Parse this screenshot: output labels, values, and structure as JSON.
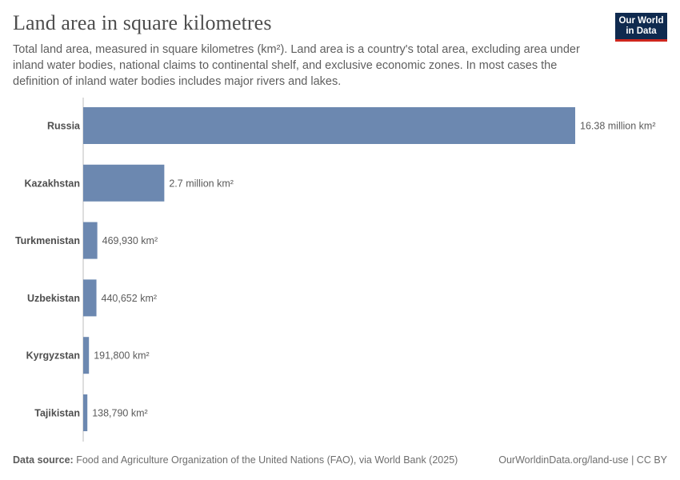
{
  "header": {
    "title": "Land area in square kilometres",
    "subtitle": "Total land area, measured in square kilometres (km²). Land area is a country's total area, excluding area under inland water bodies, national claims to continental shelf, and exclusive economic zones. In most cases the definition of inland water bodies includes major rivers and lakes."
  },
  "logo": {
    "line1": "Our World",
    "line2": "in Data",
    "bg_color": "#0f2a4f",
    "accent_color": "#ce261e"
  },
  "footer": {
    "source_label": "Data source:",
    "source_text": "Food and Agriculture Organization of the United Nations (FAO), via World Bank (2025)",
    "url_text": "OurWorldinData.org/land-use | CC BY"
  },
  "chart_data": {
    "type": "bar",
    "orientation": "horizontal",
    "bar_color": "#6c88b0",
    "categories": [
      "Russia",
      "Kazakhstan",
      "Turkmenistan",
      "Uzbekistan",
      "Kyrgyzstan",
      "Tajikistan"
    ],
    "values": [
      16380000,
      2700000,
      469930,
      440652,
      191800,
      138790
    ],
    "value_labels": [
      "16.38 million km²",
      "2.7 million km²",
      "469,930 km²",
      "440,652 km²",
      "191,800 km²",
      "138,790 km²"
    ],
    "xlim": [
      0,
      16380000
    ]
  }
}
